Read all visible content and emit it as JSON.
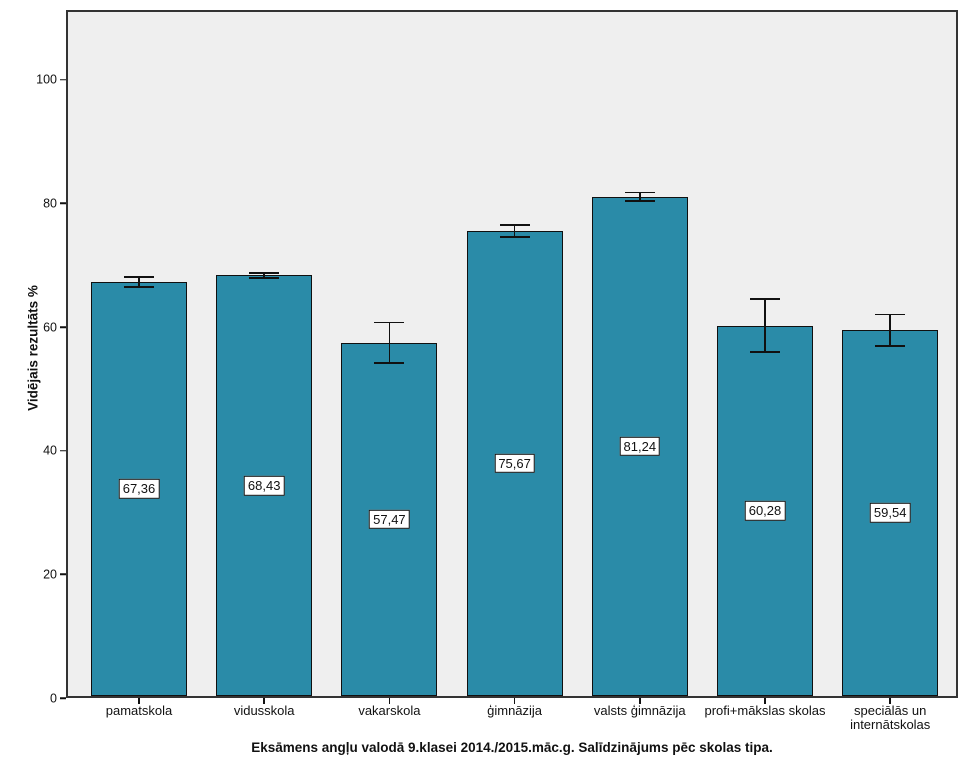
{
  "chart_data": {
    "type": "bar",
    "title": "Eksāmens angļu valodā 9.klasei 2014./2015.māc.g. Salīdzinājums pēc skolas tipa.",
    "ylabel": "Vidējais rezultāts %",
    "xlabel": "",
    "categories": [
      "pamatskola",
      "vidusskola",
      "vakarskola",
      "ģimnāzija",
      "valsts ģimnāzija",
      "profi+mākslas skolas",
      "speciālās un internātskolas"
    ],
    "values": [
      67.36,
      68.43,
      57.47,
      75.67,
      81.24,
      60.28,
      59.54
    ],
    "value_labels": [
      "67,36",
      "68,43",
      "57,47",
      "75,67",
      "81,24",
      "60,28",
      "59,54"
    ],
    "errors": [
      0.95,
      0.55,
      3.4,
      1.1,
      0.85,
      4.45,
      2.7
    ],
    "y_ticks": [
      0,
      20,
      40,
      60,
      80,
      100
    ],
    "ylim": [
      0,
      111.3
    ],
    "grid": false,
    "legend": "none",
    "colors": {
      "bar_fill": "#2a8ba8",
      "bar_border": "#101010",
      "plot_background": "#efefef",
      "frame_border": "#333333",
      "error_bar": "#111111",
      "label_box_background": "#ffffff",
      "label_box_border": "#111111",
      "outer_background": "#ffffff"
    }
  }
}
